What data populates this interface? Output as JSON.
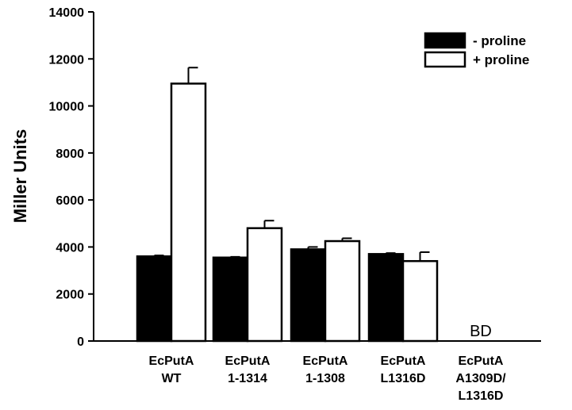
{
  "chart_data": {
    "type": "bar",
    "title": "",
    "xlabel": "",
    "ylabel": "Miller Units",
    "ylim": [
      0,
      14000
    ],
    "yticks": [
      0,
      2000,
      4000,
      6000,
      8000,
      10000,
      12000,
      14000
    ],
    "categories": [
      [
        "EcPutA",
        "WT"
      ],
      [
        "EcPutA",
        "1-1314"
      ],
      [
        "EcPutA",
        "1-1308"
      ],
      [
        "EcPutA",
        "L1316D"
      ],
      [
        "EcPutA",
        "A1309D/",
        "L1316D"
      ]
    ],
    "series": [
      {
        "name": "- proline",
        "color": "#000000",
        "values": [
          3600,
          3550,
          3900,
          3700,
          0
        ],
        "errors": [
          40,
          30,
          100,
          40,
          0
        ]
      },
      {
        "name": "+ proline",
        "color": "#ffffff",
        "values": [
          10950,
          4800,
          4250,
          3400,
          0
        ],
        "errors": [
          680,
          320,
          120,
          380,
          0
        ]
      }
    ],
    "annotations": [
      {
        "category_index": 4,
        "text": "BD"
      }
    ],
    "legend_position": "top-right",
    "grid": false
  }
}
